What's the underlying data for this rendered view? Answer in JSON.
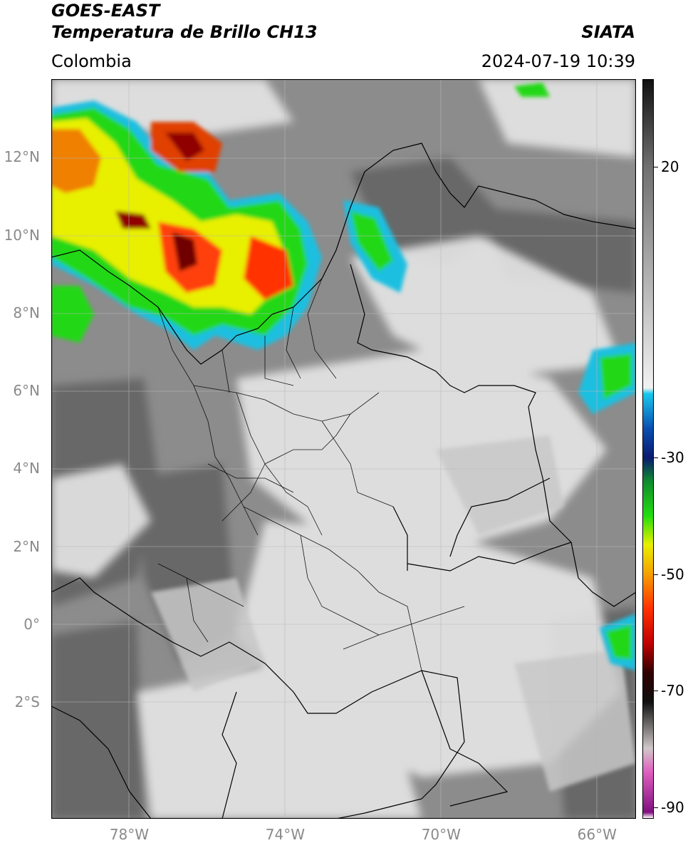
{
  "header": {
    "satellite": "GOES-EAST",
    "product": "Temperatura de Brillo CH13",
    "region": "Colombia",
    "organization": "SIATA",
    "datetime": "2024-07-19 10:39"
  },
  "axes": {
    "lat_ticks": [
      {
        "value": 12,
        "label": "12°N"
      },
      {
        "value": 10,
        "label": "10°N"
      },
      {
        "value": 8,
        "label": "8°N"
      },
      {
        "value": 6,
        "label": "6°N"
      },
      {
        "value": 4,
        "label": "4°N"
      },
      {
        "value": 2,
        "label": "2°N"
      },
      {
        "value": 0,
        "label": "0°"
      },
      {
        "value": -2,
        "label": "2°S"
      }
    ],
    "lon_ticks": [
      {
        "value": -78,
        "label": "78°W"
      },
      {
        "value": -74,
        "label": "74°W"
      },
      {
        "value": -70,
        "label": "70°W"
      },
      {
        "value": -66,
        "label": "66°W"
      }
    ],
    "lat_range": [
      -5,
      14
    ],
    "lon_range": [
      -80,
      -65
    ]
  },
  "colorbar": {
    "orientation": "vertical",
    "placement": "right",
    "range": [
      -92,
      35
    ],
    "ticks": [
      {
        "value": 20,
        "label": "20"
      },
      {
        "value": -30,
        "label": "-30"
      },
      {
        "value": -50,
        "label": "-50"
      },
      {
        "value": -70,
        "label": "-70"
      },
      {
        "value": -90,
        "label": "-90"
      }
    ],
    "stops": [
      {
        "value": 35,
        "color": "#111111"
      },
      {
        "value": 20,
        "color": "#707070"
      },
      {
        "value": -18,
        "color": "#f2f2f2"
      },
      {
        "value": -19,
        "color": "#18c8ee"
      },
      {
        "value": -25,
        "color": "#0a4fb0"
      },
      {
        "value": -30,
        "color": "#0a1a70"
      },
      {
        "value": -34,
        "color": "#108a30"
      },
      {
        "value": -40,
        "color": "#22dd10"
      },
      {
        "value": -45,
        "color": "#e8f000"
      },
      {
        "value": -50,
        "color": "#f5a000"
      },
      {
        "value": -56,
        "color": "#ff3000"
      },
      {
        "value": -62,
        "color": "#c00000"
      },
      {
        "value": -67,
        "color": "#300000"
      },
      {
        "value": -72,
        "color": "#101010"
      },
      {
        "value": -80,
        "color": "#d0c8c8"
      },
      {
        "value": -84,
        "color": "#e060c0"
      },
      {
        "value": -91,
        "color": "#801080"
      },
      {
        "value": -92,
        "color": "#ffffff"
      }
    ]
  },
  "colors": {
    "land_grey": "#a8a8a8",
    "ocean_grey": "#6e6e6e",
    "cloud_white": "#ececec",
    "border": "#000000",
    "gridline": "#b8b8b8"
  }
}
